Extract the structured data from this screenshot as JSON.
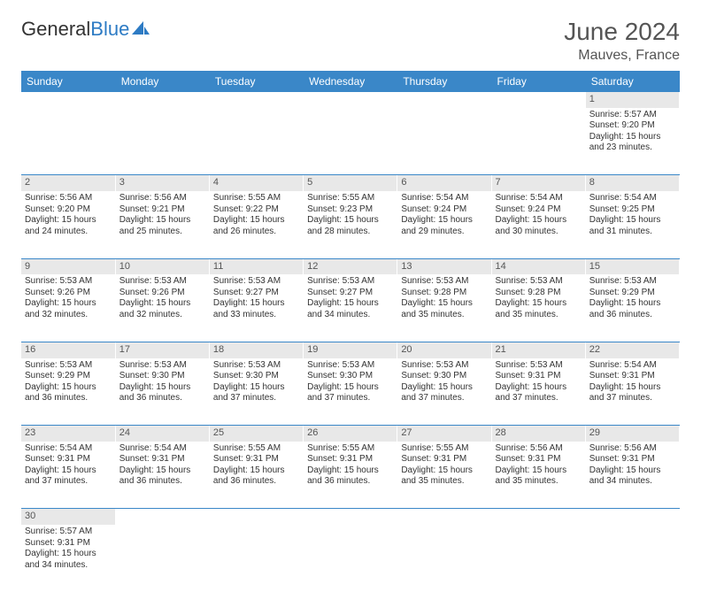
{
  "logo": {
    "part1": "General",
    "part2": "Blue"
  },
  "title": "June 2024",
  "location": "Mauves, France",
  "colors": {
    "header_bg": "#3a87c8",
    "header_text": "#ffffff",
    "daynum_bg": "#e8e8e8",
    "rule": "#3a87c8",
    "logo_blue": "#2d7bc4",
    "text": "#333333"
  },
  "dayNames": [
    "Sunday",
    "Monday",
    "Tuesday",
    "Wednesday",
    "Thursday",
    "Friday",
    "Saturday"
  ],
  "weeks": [
    [
      null,
      null,
      null,
      null,
      null,
      null,
      {
        "n": 1,
        "r": "5:57 AM",
        "s": "9:20 PM",
        "d": "15 hours and 23 minutes."
      }
    ],
    [
      {
        "n": 2,
        "r": "5:56 AM",
        "s": "9:20 PM",
        "d": "15 hours and 24 minutes."
      },
      {
        "n": 3,
        "r": "5:56 AM",
        "s": "9:21 PM",
        "d": "15 hours and 25 minutes."
      },
      {
        "n": 4,
        "r": "5:55 AM",
        "s": "9:22 PM",
        "d": "15 hours and 26 minutes."
      },
      {
        "n": 5,
        "r": "5:55 AM",
        "s": "9:23 PM",
        "d": "15 hours and 28 minutes."
      },
      {
        "n": 6,
        "r": "5:54 AM",
        "s": "9:24 PM",
        "d": "15 hours and 29 minutes."
      },
      {
        "n": 7,
        "r": "5:54 AM",
        "s": "9:24 PM",
        "d": "15 hours and 30 minutes."
      },
      {
        "n": 8,
        "r": "5:54 AM",
        "s": "9:25 PM",
        "d": "15 hours and 31 minutes."
      }
    ],
    [
      {
        "n": 9,
        "r": "5:53 AM",
        "s": "9:26 PM",
        "d": "15 hours and 32 minutes."
      },
      {
        "n": 10,
        "r": "5:53 AM",
        "s": "9:26 PM",
        "d": "15 hours and 32 minutes."
      },
      {
        "n": 11,
        "r": "5:53 AM",
        "s": "9:27 PM",
        "d": "15 hours and 33 minutes."
      },
      {
        "n": 12,
        "r": "5:53 AM",
        "s": "9:27 PM",
        "d": "15 hours and 34 minutes."
      },
      {
        "n": 13,
        "r": "5:53 AM",
        "s": "9:28 PM",
        "d": "15 hours and 35 minutes."
      },
      {
        "n": 14,
        "r": "5:53 AM",
        "s": "9:28 PM",
        "d": "15 hours and 35 minutes."
      },
      {
        "n": 15,
        "r": "5:53 AM",
        "s": "9:29 PM",
        "d": "15 hours and 36 minutes."
      }
    ],
    [
      {
        "n": 16,
        "r": "5:53 AM",
        "s": "9:29 PM",
        "d": "15 hours and 36 minutes."
      },
      {
        "n": 17,
        "r": "5:53 AM",
        "s": "9:30 PM",
        "d": "15 hours and 36 minutes."
      },
      {
        "n": 18,
        "r": "5:53 AM",
        "s": "9:30 PM",
        "d": "15 hours and 37 minutes."
      },
      {
        "n": 19,
        "r": "5:53 AM",
        "s": "9:30 PM",
        "d": "15 hours and 37 minutes."
      },
      {
        "n": 20,
        "r": "5:53 AM",
        "s": "9:30 PM",
        "d": "15 hours and 37 minutes."
      },
      {
        "n": 21,
        "r": "5:53 AM",
        "s": "9:31 PM",
        "d": "15 hours and 37 minutes."
      },
      {
        "n": 22,
        "r": "5:54 AM",
        "s": "9:31 PM",
        "d": "15 hours and 37 minutes."
      }
    ],
    [
      {
        "n": 23,
        "r": "5:54 AM",
        "s": "9:31 PM",
        "d": "15 hours and 37 minutes."
      },
      {
        "n": 24,
        "r": "5:54 AM",
        "s": "9:31 PM",
        "d": "15 hours and 36 minutes."
      },
      {
        "n": 25,
        "r": "5:55 AM",
        "s": "9:31 PM",
        "d": "15 hours and 36 minutes."
      },
      {
        "n": 26,
        "r": "5:55 AM",
        "s": "9:31 PM",
        "d": "15 hours and 36 minutes."
      },
      {
        "n": 27,
        "r": "5:55 AM",
        "s": "9:31 PM",
        "d": "15 hours and 35 minutes."
      },
      {
        "n": 28,
        "r": "5:56 AM",
        "s": "9:31 PM",
        "d": "15 hours and 35 minutes."
      },
      {
        "n": 29,
        "r": "5:56 AM",
        "s": "9:31 PM",
        "d": "15 hours and 34 minutes."
      }
    ],
    [
      {
        "n": 30,
        "r": "5:57 AM",
        "s": "9:31 PM",
        "d": "15 hours and 34 minutes."
      },
      null,
      null,
      null,
      null,
      null,
      null
    ]
  ],
  "labels": {
    "sunrise": "Sunrise:",
    "sunset": "Sunset:",
    "daylight": "Daylight:"
  }
}
